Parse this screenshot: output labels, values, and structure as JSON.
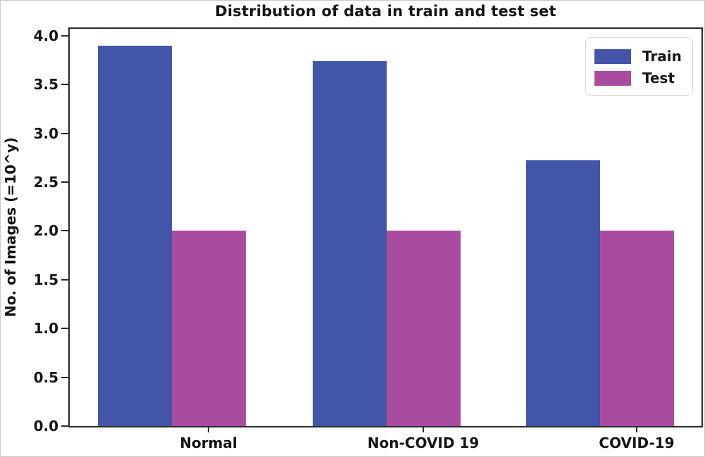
{
  "figure": {
    "background": "#ffffff",
    "border_color": "#c9c9c9"
  },
  "chart_data": {
    "type": "bar",
    "title": "Distribution of data in train and test set",
    "xlabel": "",
    "ylabel": "No. of Images (=10^y)",
    "categories": [
      "Normal",
      "Non-COVID 19",
      "COVID-19"
    ],
    "series": [
      {
        "name": "Train",
        "color": "#4255a8",
        "values": [
          3.9,
          3.74,
          2.72
        ]
      },
      {
        "name": "Test",
        "color": "#a94c9f",
        "values": [
          2.0,
          2.0,
          2.0
        ]
      }
    ],
    "ylim": [
      0,
      4.1
    ],
    "yticks": [
      0.0,
      0.5,
      1.0,
      1.5,
      2.0,
      2.5,
      3.0,
      3.5,
      4.0
    ],
    "ytick_label_format": "one_decimal",
    "grid": false,
    "legend": {
      "position": "upper right",
      "entries": [
        "Train",
        "Test"
      ]
    },
    "frame_color": "#2b2b2b",
    "text_color": "#151515"
  }
}
